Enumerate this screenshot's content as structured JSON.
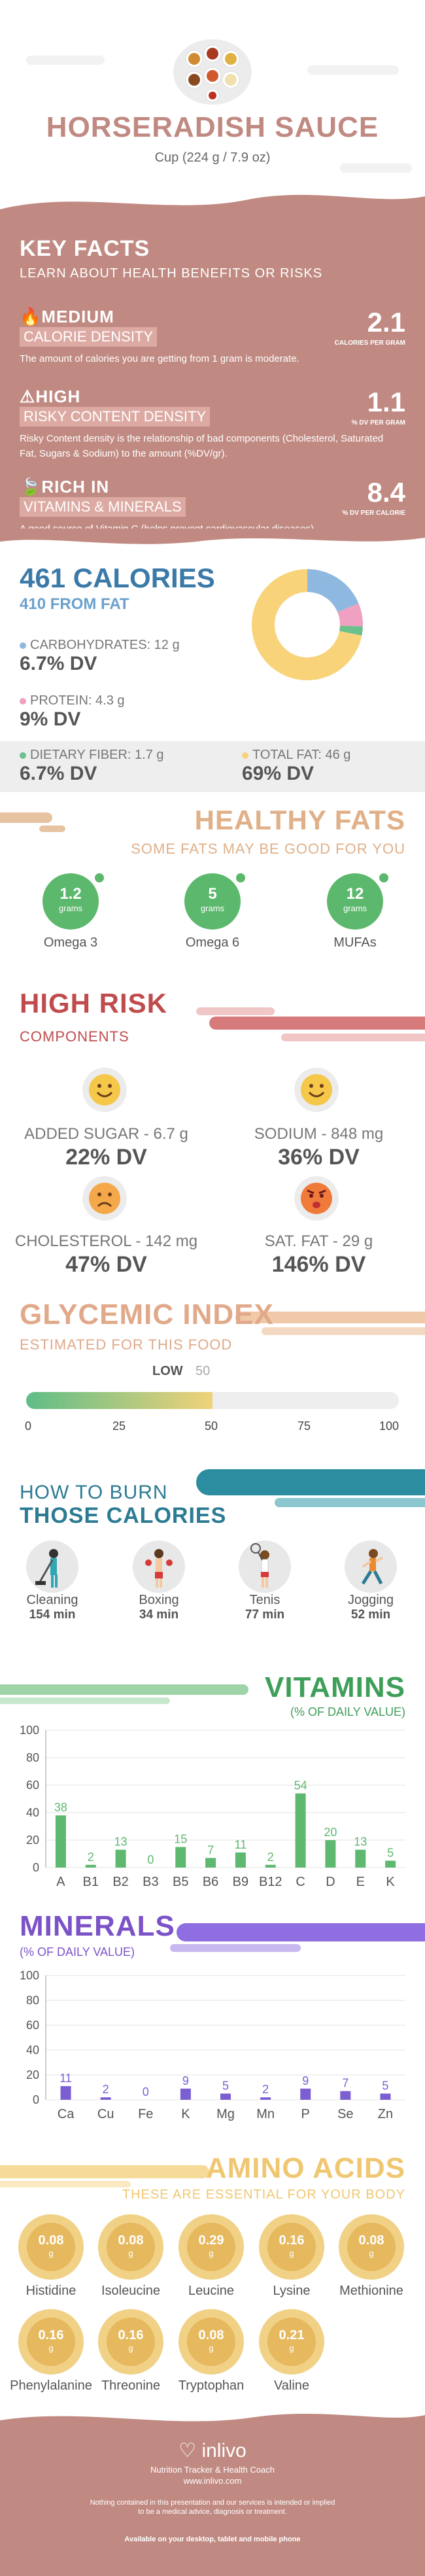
{
  "header": {
    "title": "HORSERADISH SAUCE",
    "serving": "Cup (224 g / 7.9 oz)"
  },
  "key_facts": {
    "title": "KEY FACTS",
    "subtitle": "LEARN ABOUT HEALTH BENEFITS OR RISKS",
    "items": [
      {
        "level": "MEDIUM",
        "label": "CALORIE DENSITY",
        "value": "2.1",
        "unit": "CALORIES PER GRAM",
        "desc": "The amount of calories you are getting from 1 gram is moderate."
      },
      {
        "level": "HIGH",
        "label": "RISKY CONTENT DENSITY",
        "value": "1.1",
        "unit": "% DV PER GRAM",
        "desc": "Risky Content density is the relationship of bad components (Cholesterol, Saturated Fat, Sugars & Sodium) to the amount (%DV/gr)."
      },
      {
        "level": "RICH IN",
        "label": "VITAMINS & MINERALS",
        "value": "8.4",
        "unit": "% DV PER CALORIE",
        "desc": "A good source of Vitamin C (helps prevent cardiovascular diseases)."
      }
    ]
  },
  "calories": {
    "title": "461 CALORIES",
    "from_fat": "410 FROM FAT",
    "carbs_label": "CARBOHYDRATES: 12 g",
    "carbs_dv": "6.7% DV",
    "protein_label": "PROTEIN: 4.3 g",
    "protein_dv": "9% DV",
    "fiber_label": "DIETARY FIBER: 1.7 g",
    "fiber_dv": "6.7% DV",
    "fat_label": "TOTAL FAT: 46 g",
    "fat_dv": "69% DV",
    "colors": {
      "carbs": "#8fb8e0",
      "protein": "#f0a0c0",
      "fiber": "#6cc08c",
      "fat": "#f8d37a"
    },
    "donut": [
      {
        "name": "carbs",
        "grams": 12,
        "color": "#8fb8e0"
      },
      {
        "name": "protein",
        "grams": 4.3,
        "color": "#f0a0c0"
      },
      {
        "name": "fiber",
        "grams": 1.7,
        "color": "#6cc08c"
      },
      {
        "name": "fat",
        "grams": 46,
        "color": "#f8d37a"
      }
    ]
  },
  "healthy_fats": {
    "title": "HEALTHY FATS",
    "subtitle": "SOME FATS MAY BE GOOD FOR YOU",
    "items": [
      {
        "value": "1.2",
        "unit": "grams",
        "name": "Omega 3"
      },
      {
        "value": "5",
        "unit": "grams",
        "name": "Omega 6"
      },
      {
        "value": "12",
        "unit": "grams",
        "name": "MUFAs"
      }
    ]
  },
  "high_risk": {
    "title": "HIGH RISK",
    "subtitle": "COMPONENTS",
    "items": [
      {
        "label": "ADDED SUGAR - 6.7 g",
        "dv": "22% DV",
        "mood": "happy"
      },
      {
        "label": "SODIUM - 848 mg",
        "dv": "36% DV",
        "mood": "happy"
      },
      {
        "label": "CHOLESTEROL - 142 mg",
        "dv": "47% DV",
        "mood": "sad"
      },
      {
        "label": "SAT. FAT - 29 g",
        "dv": "146% DV",
        "mood": "angry"
      }
    ]
  },
  "glycemic": {
    "title": "GLYCEMIC INDEX",
    "subtitle": "ESTIMATED FOR THIS FOOD",
    "level": "LOW",
    "value": "50",
    "ticks": [
      "0",
      "25",
      "50",
      "75",
      "100"
    ]
  },
  "burn": {
    "title1": "HOW TO BURN",
    "title2": "THOSE CALORIES",
    "items": [
      {
        "name": "Cleaning",
        "min": "154 min"
      },
      {
        "name": "Boxing",
        "min": "34 min"
      },
      {
        "name": "Tenis",
        "min": "77 min"
      },
      {
        "name": "Jogging",
        "min": "52 min"
      }
    ]
  },
  "vitamins": {
    "title": "VITAMINS",
    "subtitle": "(% OF DAILY VALUE)"
  },
  "minerals": {
    "title": "MINERALS",
    "subtitle": "(% OF DAILY VALUE)"
  },
  "chart_data": [
    {
      "type": "bar",
      "title": "VITAMINS",
      "ylabel": "(% OF DAILY VALUE)",
      "categories": [
        "A",
        "B1",
        "B2",
        "B3",
        "B5",
        "B6",
        "B9",
        "B12",
        "C",
        "D",
        "E",
        "K"
      ],
      "values": [
        38,
        2,
        13,
        0,
        15,
        7,
        11,
        2,
        54,
        20,
        13,
        5
      ],
      "yticks": [
        0,
        20,
        40,
        60,
        80,
        100
      ],
      "ylim": [
        0,
        100
      ],
      "color": "#5fb86f"
    },
    {
      "type": "bar",
      "title": "MINERALS",
      "ylabel": "(% OF DAILY VALUE)",
      "categories": [
        "Ca",
        "Cu",
        "Fe",
        "K",
        "Mg",
        "Mn",
        "P",
        "Se",
        "Zn"
      ],
      "values": [
        11,
        2,
        0,
        9,
        5,
        2,
        9,
        7,
        5
      ],
      "yticks": [
        0,
        20,
        40,
        60,
        80,
        100
      ],
      "ylim": [
        0,
        100
      ],
      "color": "#7b5ed1"
    }
  ],
  "amino": {
    "title": "AMINO ACIDS",
    "subtitle": "THESE ARE ESSENTIAL FOR YOUR BODY",
    "unit": "g",
    "items": [
      {
        "name": "Histidine",
        "value": "0.08"
      },
      {
        "name": "Isoleucine",
        "value": "0.08"
      },
      {
        "name": "Leucine",
        "value": "0.29"
      },
      {
        "name": "Lysine",
        "value": "0.16"
      },
      {
        "name": "Methionine",
        "value": "0.08"
      },
      {
        "name": "Phenylalanine",
        "value": "0.16"
      },
      {
        "name": "Threonine",
        "value": "0.16"
      },
      {
        "name": "Tryptophan",
        "value": "0.08"
      },
      {
        "name": "Valine",
        "value": "0.21"
      }
    ]
  },
  "footer": {
    "brand": "inlivo",
    "tagline": "Nutrition Tracker & Health Coach",
    "url": "www.inlivo.com",
    "disclaimer1": "Nothing contained in this presentation and our services is intended or implied",
    "disclaimer2": "to be a medical advice, diagnosis or treatment.",
    "available": "Available on your desktop, tablet and mobile phone"
  }
}
